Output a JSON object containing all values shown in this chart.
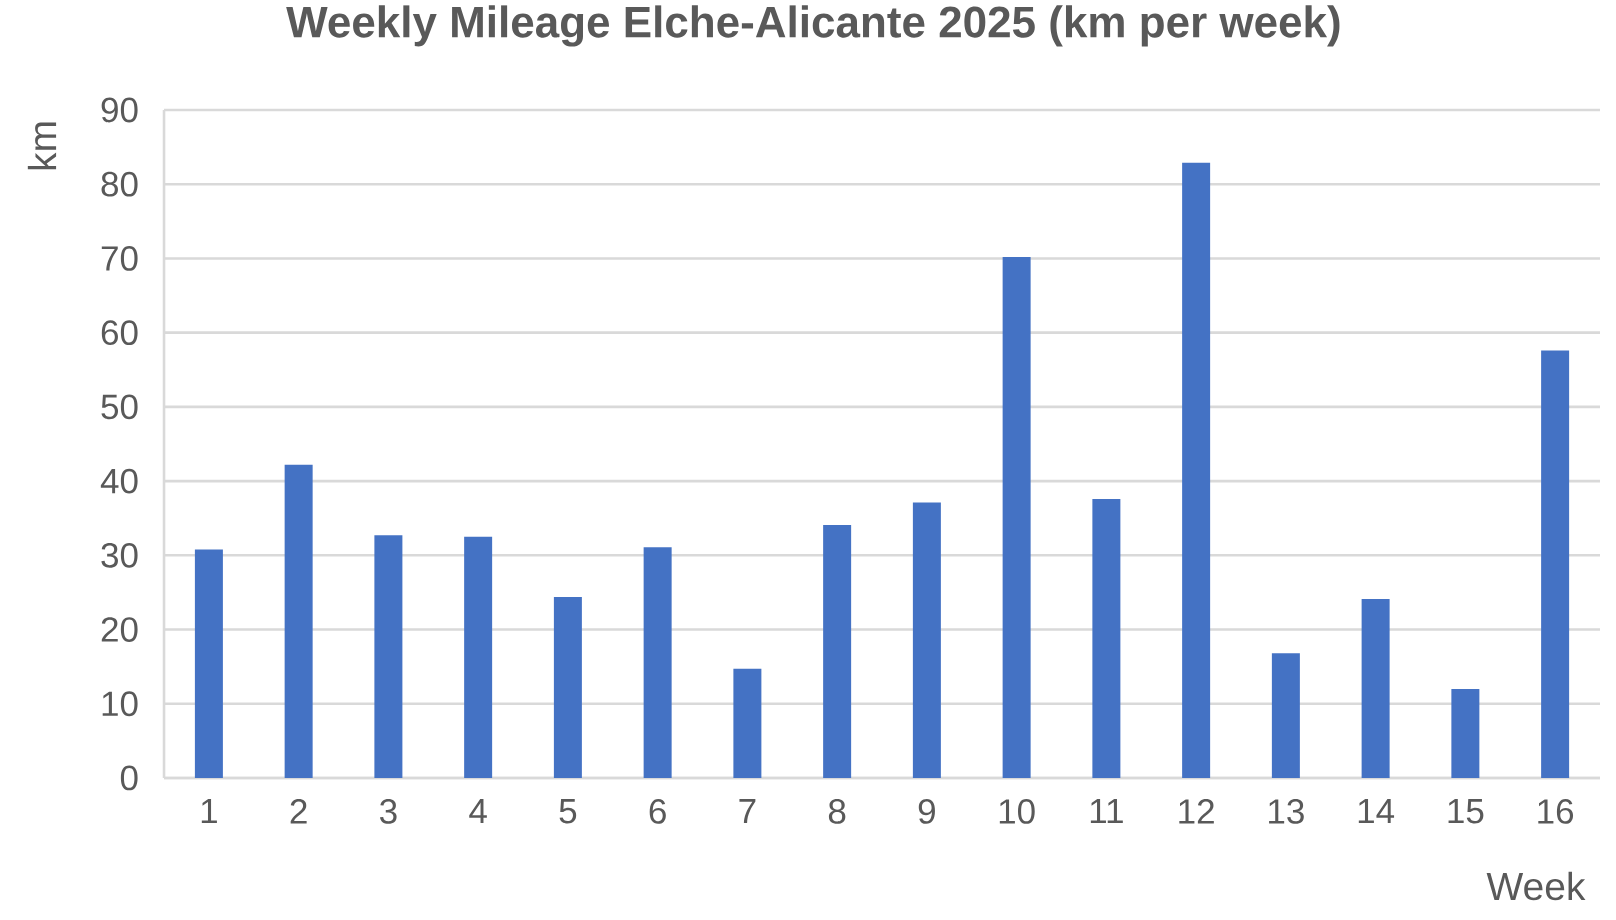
{
  "chart_data": {
    "type": "bar",
    "title": "Weekly Mileage Elche-Alicante 2025 (km per week)",
    "xlabel": "Week",
    "ylabel": "km",
    "categories": [
      "1",
      "2",
      "3",
      "4",
      "5",
      "6",
      "7",
      "8",
      "9",
      "10",
      "11",
      "12",
      "13",
      "14",
      "15",
      "16"
    ],
    "values": [
      30.8,
      42.2,
      32.7,
      32.5,
      24.4,
      31.1,
      14.7,
      34.1,
      37.1,
      70.2,
      37.6,
      82.9,
      16.8,
      24.1,
      12.0,
      57.6
    ],
    "color": "#4472c4",
    "ylim": [
      0,
      90
    ],
    "yticks": [
      0,
      10,
      20,
      30,
      40,
      50,
      60,
      70,
      80,
      90
    ],
    "grid": "y"
  }
}
